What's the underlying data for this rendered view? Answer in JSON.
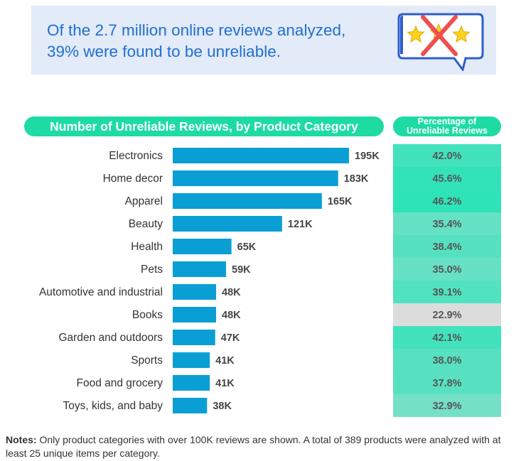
{
  "banner": {
    "line1": "Of the 2.7 million online reviews analyzed,",
    "line2": "39% were found to be unreliable.",
    "icon": "crossed-out-star-rating-speech-bubble-icon"
  },
  "headers": {
    "left": "Number of Unreliable Reviews, by Product Category",
    "right_line1": "Percentage of",
    "right_line2": "Unreliable Reviews"
  },
  "chart_data": {
    "type": "bar",
    "orientation": "horizontal",
    "categories": [
      "Electronics",
      "Home decor",
      "Apparel",
      "Beauty",
      "Health",
      "Pets",
      "Automotive and industrial",
      "Books",
      "Garden and outdoors",
      "Sports",
      "Food and grocery",
      "Toys, kids, and baby"
    ],
    "values": [
      195,
      183,
      165,
      121,
      65,
      59,
      48,
      48,
      47,
      41,
      41,
      38
    ],
    "value_labels": [
      "195K",
      "183K",
      "165K",
      "121K",
      "65K",
      "59K",
      "48K",
      "48K",
      "47K",
      "41K",
      "41K",
      "38K"
    ],
    "percentages": [
      42.0,
      45.6,
      46.2,
      35.4,
      38.4,
      35.0,
      39.1,
      22.9,
      42.1,
      38.0,
      37.8,
      32.9
    ],
    "percentage_labels": [
      "42.0%",
      "45.6%",
      "46.2%",
      "35.4%",
      "38.4%",
      "35.0%",
      "39.1%",
      "22.9%",
      "42.1%",
      "38.0%",
      "37.8%",
      "32.9%"
    ],
    "bar_color": "#0a9fd4",
    "percent_scale_colors": {
      "low": "#dcdcdc",
      "high": "#2fe3b8"
    }
  },
  "notes": {
    "label": "Notes:",
    "text": " Only product categories with over 100K reviews are shown. A total of 389 products were analyzed with at least 25 unique items per category."
  },
  "colors": {
    "accent": "#1edba4",
    "banner_bg": "#e3eaf8",
    "banner_text": "#1f6fd1"
  }
}
